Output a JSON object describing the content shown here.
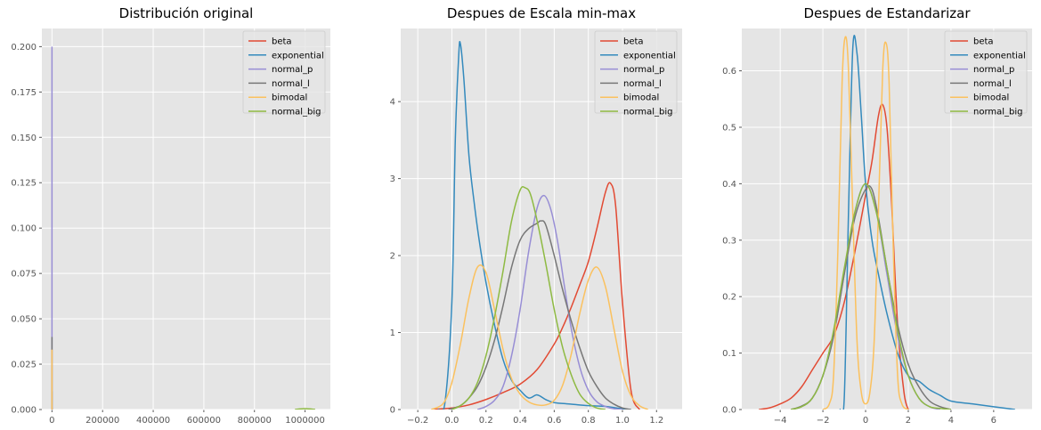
{
  "colors": {
    "beta": "#E24A33",
    "exponential": "#348ABD",
    "normal_p": "#988ED5",
    "normal_l": "#777777",
    "bimodal": "#FBC15E",
    "normal_big": "#8EBA42",
    "panel_bg": "#E5E5E5",
    "grid": "#FFFFFF"
  },
  "legend_labels": [
    "beta",
    "exponential",
    "normal_p",
    "normal_l",
    "bimodal",
    "normal_big"
  ],
  "chart_data": [
    {
      "type": "line",
      "title": "Distribución original",
      "xlim": [
        -40000,
        1100000
      ],
      "ylim": [
        0,
        0.21
      ],
      "xticks": [
        0,
        200000,
        400000,
        600000,
        800000,
        1000000
      ],
      "xtick_labels": [
        "0",
        "200000",
        "400000",
        "600000",
        "800000",
        "1000000"
      ],
      "yticks": [
        0,
        0.025,
        0.05,
        0.075,
        0.1,
        0.125,
        0.15,
        0.175,
        0.2
      ],
      "ytick_labels": [
        "0.000",
        "0.025",
        "0.050",
        "0.075",
        "0.100",
        "0.125",
        "0.150",
        "0.175",
        "0.200"
      ],
      "grid": true,
      "legend": "top-right",
      "series": [
        {
          "name": "beta",
          "x": [
            0,
            0,
            0
          ],
          "y": [
            0,
            0.001,
            0
          ]
        },
        {
          "name": "exponential",
          "x": [
            0,
            0,
            0
          ],
          "y": [
            0,
            0.01,
            0
          ]
        },
        {
          "name": "normal_p",
          "x": [
            0,
            0,
            0
          ],
          "y": [
            0,
            0.2,
            0
          ]
        },
        {
          "name": "normal_l",
          "x": [
            0,
            0,
            0
          ],
          "y": [
            0,
            0.04,
            0
          ]
        },
        {
          "name": "bimodal",
          "x": [
            0,
            0,
            0
          ],
          "y": [
            0,
            0.033,
            0
          ]
        },
        {
          "name": "normal_big",
          "x": [
            960000,
            1000000,
            1040000
          ],
          "y": [
            0,
            0.0005,
            0
          ]
        }
      ]
    },
    {
      "type": "line",
      "title": "Despues de Escala min-max",
      "xlim": [
        -0.3,
        1.35
      ],
      "ylim": [
        0,
        4.95
      ],
      "xticks": [
        -0.2,
        0.0,
        0.2,
        0.4,
        0.6,
        0.8,
        1.0,
        1.2
      ],
      "xtick_labels": [
        "−0.2",
        "0.0",
        "0.2",
        "0.4",
        "0.6",
        "0.8",
        "1.0",
        "1.2"
      ],
      "yticks": [
        0,
        1,
        2,
        3,
        4
      ],
      "ytick_labels": [
        "0",
        "1",
        "2",
        "3",
        "4"
      ],
      "grid": true,
      "legend": "top-right",
      "series": [
        {
          "name": "beta",
          "x": [
            -0.12,
            0.0,
            0.1,
            0.2,
            0.3,
            0.4,
            0.5,
            0.6,
            0.65,
            0.7,
            0.75,
            0.8,
            0.85,
            0.9,
            0.93,
            0.96,
            1.0,
            1.05,
            1.1
          ],
          "y": [
            0,
            0.02,
            0.06,
            0.13,
            0.22,
            0.33,
            0.52,
            0.85,
            1.07,
            1.33,
            1.62,
            1.92,
            2.35,
            2.82,
            2.94,
            2.65,
            1.4,
            0.25,
            0
          ]
        },
        {
          "name": "exponential",
          "x": [
            -0.08,
            -0.04,
            0.0,
            0.02,
            0.04,
            0.05,
            0.07,
            0.1,
            0.13,
            0.16,
            0.2,
            0.25,
            0.3,
            0.35,
            0.4,
            0.45,
            0.5,
            0.55,
            0.6,
            0.7,
            0.8,
            0.9,
            1.0,
            1.05
          ],
          "y": [
            0,
            0.1,
            1.4,
            3.5,
            4.6,
            4.75,
            4.3,
            3.3,
            2.7,
            2.2,
            1.65,
            1.1,
            0.65,
            0.38,
            0.25,
            0.15,
            0.19,
            0.13,
            0.09,
            0.07,
            0.05,
            0.04,
            0.01,
            0
          ]
        },
        {
          "name": "normal_p",
          "x": [
            0.15,
            0.2,
            0.25,
            0.3,
            0.35,
            0.4,
            0.45,
            0.5,
            0.54,
            0.58,
            0.62,
            0.66,
            0.7,
            0.75,
            0.8,
            0.85,
            0.9,
            0.95,
            1.0
          ],
          "y": [
            0,
            0.04,
            0.12,
            0.3,
            0.7,
            1.3,
            2.05,
            2.62,
            2.78,
            2.6,
            2.18,
            1.6,
            1.05,
            0.55,
            0.25,
            0.1,
            0.04,
            0.01,
            0
          ]
        },
        {
          "name": "normal_l",
          "x": [
            -0.02,
            0.05,
            0.1,
            0.15,
            0.2,
            0.25,
            0.3,
            0.35,
            0.4,
            0.45,
            0.5,
            0.52,
            0.55,
            0.6,
            0.65,
            0.7,
            0.75,
            0.8,
            0.85,
            0.9,
            0.95,
            1.0,
            1.05
          ],
          "y": [
            0,
            0.05,
            0.15,
            0.3,
            0.55,
            0.9,
            1.35,
            1.85,
            2.2,
            2.35,
            2.42,
            2.45,
            2.4,
            2.0,
            1.55,
            1.15,
            0.8,
            0.5,
            0.3,
            0.15,
            0.07,
            0.02,
            0
          ]
        },
        {
          "name": "bimodal",
          "x": [
            -0.12,
            -0.05,
            0.0,
            0.05,
            0.1,
            0.15,
            0.2,
            0.25,
            0.3,
            0.35,
            0.4,
            0.45,
            0.5,
            0.55,
            0.6,
            0.65,
            0.7,
            0.75,
            0.8,
            0.85,
            0.9,
            0.95,
            1.0,
            1.05,
            1.1,
            1.15
          ],
          "y": [
            0,
            0.08,
            0.35,
            0.85,
            1.45,
            1.85,
            1.78,
            1.3,
            0.78,
            0.4,
            0.2,
            0.1,
            0.06,
            0.06,
            0.12,
            0.32,
            0.72,
            1.25,
            1.68,
            1.85,
            1.6,
            1.05,
            0.5,
            0.18,
            0.05,
            0
          ]
        },
        {
          "name": "normal_big",
          "x": [
            0.0,
            0.05,
            0.1,
            0.15,
            0.2,
            0.25,
            0.3,
            0.35,
            0.4,
            0.43,
            0.46,
            0.5,
            0.55,
            0.6,
            0.65,
            0.7,
            0.75,
            0.8,
            0.85,
            0.9
          ],
          "y": [
            0,
            0.05,
            0.15,
            0.35,
            0.7,
            1.2,
            1.8,
            2.45,
            2.85,
            2.88,
            2.8,
            2.45,
            1.9,
            1.3,
            0.8,
            0.45,
            0.2,
            0.08,
            0.02,
            0
          ]
        }
      ]
    },
    {
      "type": "line",
      "title": "Despues de Estandarizar",
      "xlim": [
        -5.8,
        7.8
      ],
      "ylim": [
        0,
        0.675
      ],
      "xticks": [
        -4,
        -2,
        0,
        2,
        4,
        6
      ],
      "xtick_labels": [
        "−4",
        "−2",
        "0",
        "2",
        "4",
        "6"
      ],
      "yticks": [
        0,
        0.1,
        0.2,
        0.3,
        0.4,
        0.5,
        0.6
      ],
      "ytick_labels": [
        "0.0",
        "0.1",
        "0.2",
        "0.3",
        "0.4",
        "0.5",
        "0.6"
      ],
      "grid": true,
      "legend": "top-right",
      "series": [
        {
          "name": "beta",
          "x": [
            -5.0,
            -4.5,
            -4.0,
            -3.5,
            -3.0,
            -2.5,
            -2.0,
            -1.5,
            -1.0,
            -0.5,
            0.0,
            0.3,
            0.6,
            0.8,
            1.0,
            1.2,
            1.5,
            1.8,
            2.0
          ],
          "y": [
            0,
            0.003,
            0.01,
            0.02,
            0.04,
            0.07,
            0.1,
            0.13,
            0.19,
            0.28,
            0.38,
            0.44,
            0.52,
            0.54,
            0.5,
            0.38,
            0.15,
            0.03,
            0
          ]
        },
        {
          "name": "exponential",
          "x": [
            -1.2,
            -1.0,
            -0.8,
            -0.6,
            -0.4,
            -0.2,
            0.0,
            0.3,
            0.6,
            1.0,
            1.5,
            2.0,
            2.5,
            3.0,
            3.5,
            4.0,
            5.0,
            6.0,
            7.0
          ],
          "y": [
            0,
            0.02,
            0.35,
            0.64,
            0.63,
            0.52,
            0.4,
            0.3,
            0.24,
            0.17,
            0.1,
            0.06,
            0.05,
            0.035,
            0.025,
            0.015,
            0.01,
            0.005,
            0
          ]
        },
        {
          "name": "normal_p",
          "x": [
            -3.5,
            -3.0,
            -2.5,
            -2.0,
            -1.5,
            -1.0,
            -0.5,
            0.0,
            0.5,
            1.0,
            1.5,
            2.0,
            2.5,
            3.0,
            3.5
          ],
          "y": [
            0,
            0.005,
            0.02,
            0.06,
            0.13,
            0.24,
            0.35,
            0.4,
            0.35,
            0.24,
            0.13,
            0.06,
            0.02,
            0.005,
            0
          ]
        },
        {
          "name": "normal_l",
          "x": [
            -3.5,
            -3.0,
            -2.5,
            -2.0,
            -1.5,
            -1.0,
            -0.5,
            0.0,
            0.3,
            0.6,
            1.0,
            1.5,
            2.0,
            2.5,
            3.0,
            3.5,
            4.0
          ],
          "y": [
            0,
            0.006,
            0.02,
            0.06,
            0.13,
            0.24,
            0.34,
            0.39,
            0.39,
            0.34,
            0.25,
            0.15,
            0.08,
            0.04,
            0.015,
            0.005,
            0
          ]
        },
        {
          "name": "bimodal",
          "x": [
            -2.0,
            -1.7,
            -1.5,
            -1.3,
            -1.1,
            -0.95,
            -0.8,
            -0.6,
            -0.4,
            -0.2,
            0.0,
            0.2,
            0.4,
            0.6,
            0.8,
            0.95,
            1.1,
            1.3,
            1.5,
            1.7,
            2.0
          ],
          "y": [
            0,
            0.01,
            0.06,
            0.28,
            0.58,
            0.66,
            0.6,
            0.35,
            0.12,
            0.03,
            0.01,
            0.03,
            0.12,
            0.35,
            0.6,
            0.65,
            0.58,
            0.28,
            0.06,
            0.01,
            0
          ]
        },
        {
          "name": "normal_big",
          "x": [
            -3.5,
            -3.0,
            -2.5,
            -2.0,
            -1.5,
            -1.0,
            -0.5,
            0.0,
            0.5,
            1.0,
            1.5,
            2.0,
            2.5,
            3.0,
            3.5,
            4.0
          ],
          "y": [
            0,
            0.005,
            0.02,
            0.06,
            0.14,
            0.25,
            0.35,
            0.4,
            0.35,
            0.25,
            0.14,
            0.06,
            0.02,
            0.005,
            0.002,
            0
          ]
        }
      ]
    }
  ]
}
